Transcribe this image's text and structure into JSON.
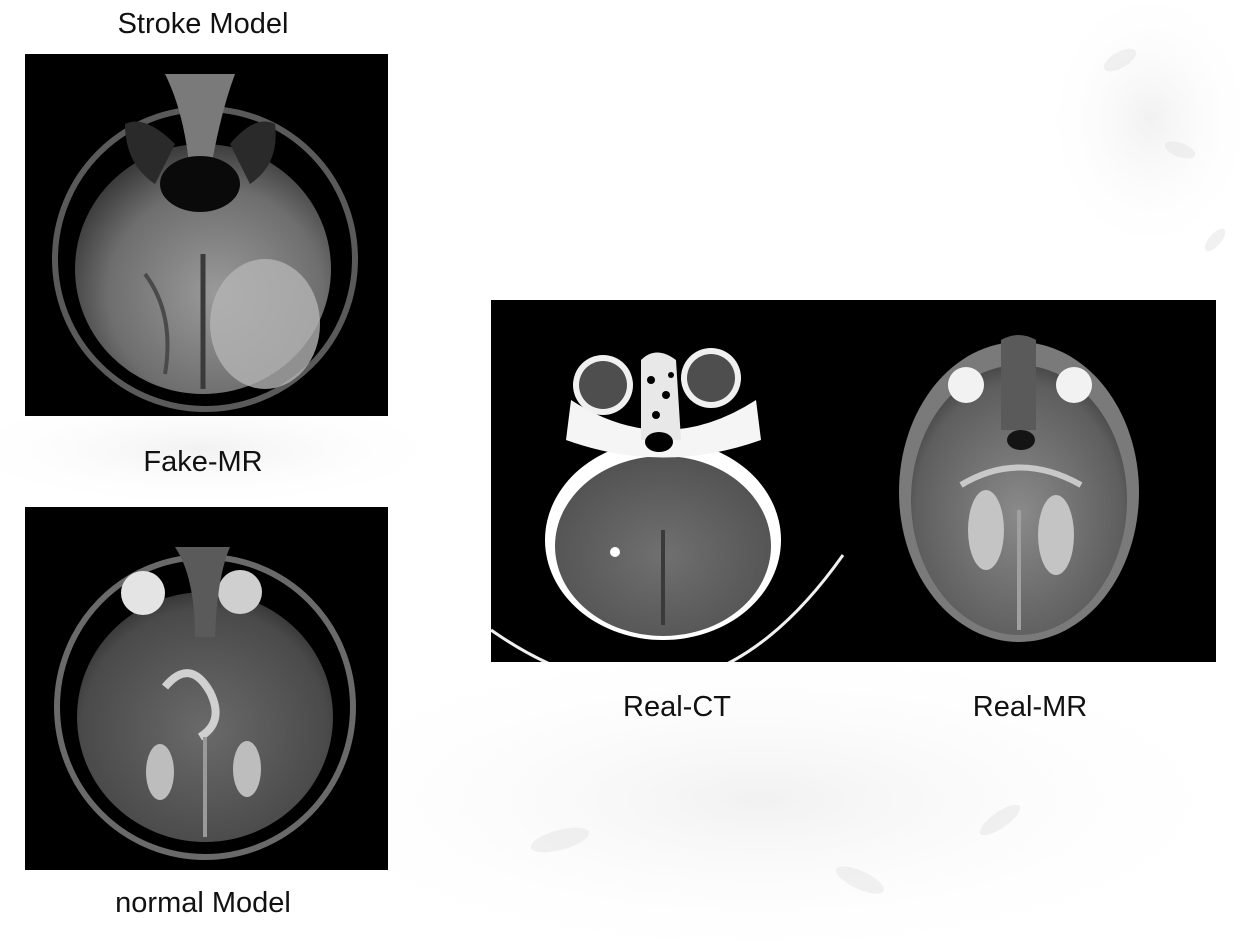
{
  "labels": {
    "stroke_model": "Stroke Model",
    "fake_mr": "Fake-MR",
    "normal_model": "normal Model",
    "real_ct": "Real-CT",
    "real_mr": "Real-MR"
  },
  "images": {
    "stroke_model_scan": "axial brain MR slice (stroke model output)",
    "normal_model_scan": "axial brain MR slice (normal model output)",
    "real_ct_scan": "axial brain CT slice",
    "real_mr_scan": "axial brain MR slice"
  }
}
